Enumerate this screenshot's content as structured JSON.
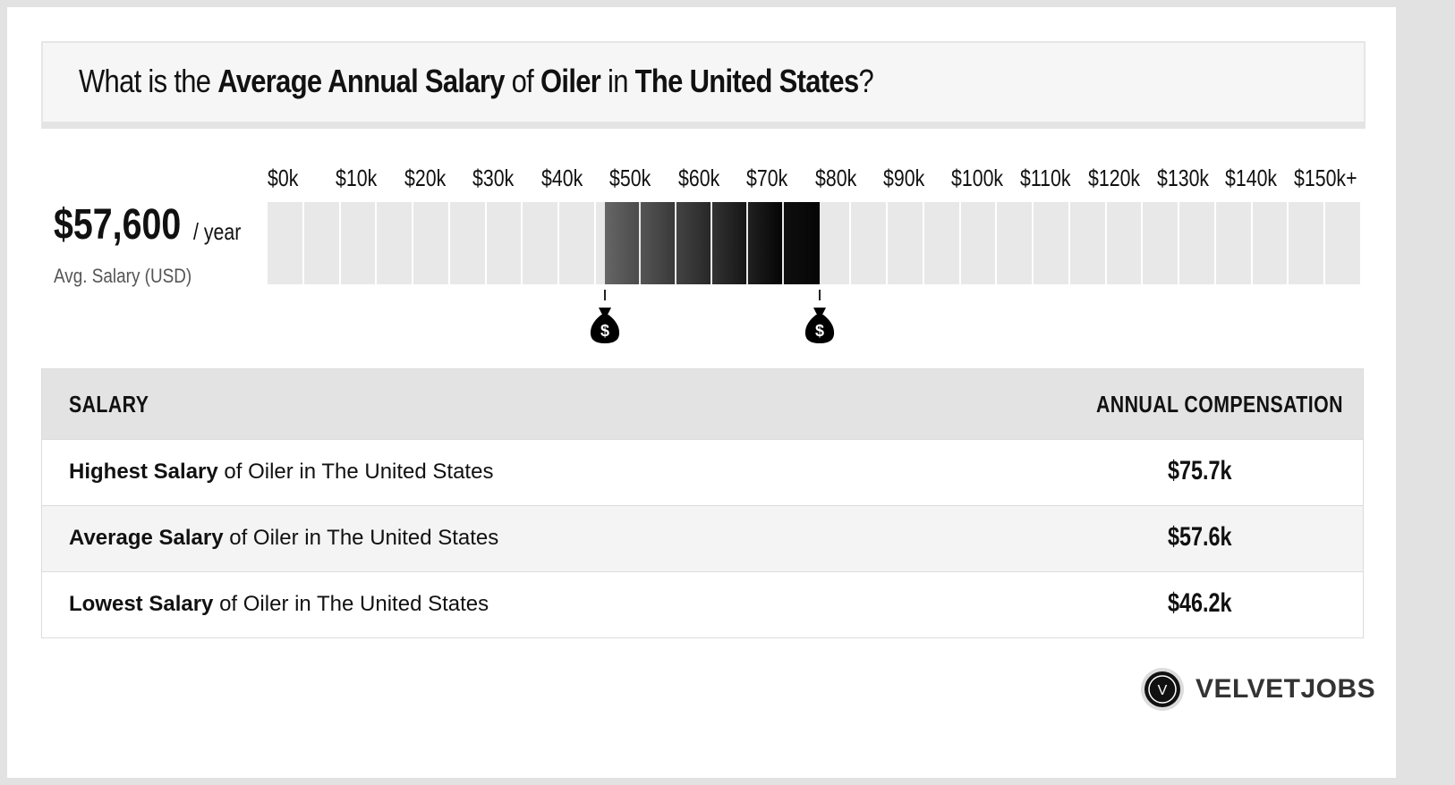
{
  "header": {
    "title_parts": [
      {
        "text": "What is the ",
        "bold": false
      },
      {
        "text": "Average Annual Salary",
        "bold": true
      },
      {
        "text": " of ",
        "bold": false
      },
      {
        "text": "Oiler",
        "bold": true
      },
      {
        "text": " in ",
        "bold": false
      },
      {
        "text": "The United States",
        "bold": true
      },
      {
        "text": "?",
        "bold": false
      }
    ]
  },
  "average": {
    "value": "$57,600",
    "unit": "/ year",
    "caption": "Avg. Salary (USD)"
  },
  "chart_data": {
    "type": "bar",
    "tick_labels": [
      "$0k",
      "$10k",
      "$20k",
      "$30k",
      "$40k",
      "$50k",
      "$60k",
      "$70k",
      "$80k",
      "$90k",
      "$100k",
      "$110k",
      "$120k",
      "$130k",
      "$140k",
      "$150k+"
    ],
    "x_range": [
      0,
      150
    ],
    "highlight_range": [
      46.2,
      75.7
    ],
    "markers": [
      {
        "icon": "money-bag-icon",
        "value": 46.2
      },
      {
        "icon": "money-bag-icon",
        "value": 75.7
      }
    ],
    "colors": {
      "empty": "#e8e8e8",
      "light": "#666666",
      "dark": "#050505"
    }
  },
  "table": {
    "headers": {
      "left": "SALARY",
      "right": "ANNUAL COMPENSATION"
    },
    "rows": [
      {
        "bold": "Highest Salary",
        "rest": " of Oiler in The United States",
        "value": "$75.7k"
      },
      {
        "bold": "Average Salary",
        "rest": " of Oiler in The United States",
        "value": "$57.6k"
      },
      {
        "bold": "Lowest Salary",
        "rest": " of Oiler in The United States",
        "value": "$46.2k"
      }
    ]
  },
  "brand": {
    "logo_letter": "V",
    "name": "VELVETJOBS"
  }
}
